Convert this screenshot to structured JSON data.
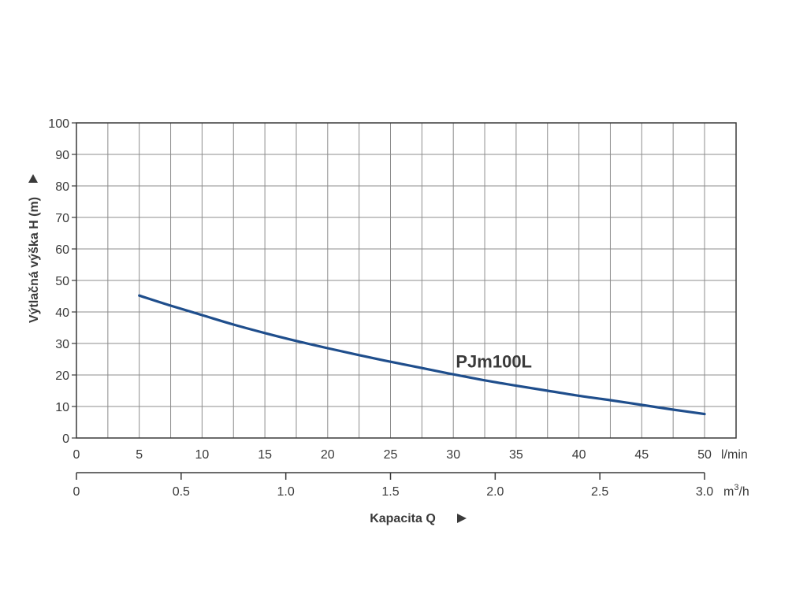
{
  "chart_data": {
    "type": "line",
    "ylabel": "Výtlačná výška H (m)",
    "xlabel": "Kapacita Q",
    "ylim": [
      0,
      100
    ],
    "y_ticks": [
      0,
      10,
      20,
      30,
      40,
      50,
      60,
      70,
      80,
      90,
      100
    ],
    "xlim": [
      0,
      52.5
    ],
    "x_ticks": [
      0,
      5,
      10,
      15,
      20,
      25,
      30,
      35,
      40,
      45,
      50
    ],
    "x_unit": "l/min",
    "x2_ticks": [
      {
        "value": 0,
        "label": "0"
      },
      {
        "value": 0.5,
        "label": "0.5"
      },
      {
        "value": 1.0,
        "label": "1.0"
      },
      {
        "value": 1.5,
        "label": "1.5"
      },
      {
        "value": 2.0,
        "label": "2.0"
      },
      {
        "value": 2.5,
        "label": "2.5"
      },
      {
        "value": 3.0,
        "label": "3.0"
      }
    ],
    "x2_unit": "m",
    "x2_unit_sup": "3",
    "x2_unit_suffix": "/h",
    "grid": true,
    "series": [
      {
        "name": "PJm100L",
        "color": "#1f4e8c",
        "points": [
          [
            5,
            45.2
          ],
          [
            7.5,
            42
          ],
          [
            10,
            39
          ],
          [
            12.5,
            36
          ],
          [
            15,
            33.3
          ],
          [
            17.5,
            30.8
          ],
          [
            20,
            28.5
          ],
          [
            22.5,
            26.3
          ],
          [
            25,
            24.2
          ],
          [
            27.5,
            22.2
          ],
          [
            30,
            20.2
          ],
          [
            32.5,
            18.3
          ],
          [
            35,
            16.6
          ],
          [
            37.5,
            15
          ],
          [
            40,
            13.4
          ],
          [
            42.5,
            12
          ],
          [
            45,
            10.5
          ],
          [
            47.5,
            9
          ],
          [
            50,
            7.6
          ]
        ]
      }
    ],
    "series_label_at": [
      30.2,
      22.4
    ]
  }
}
